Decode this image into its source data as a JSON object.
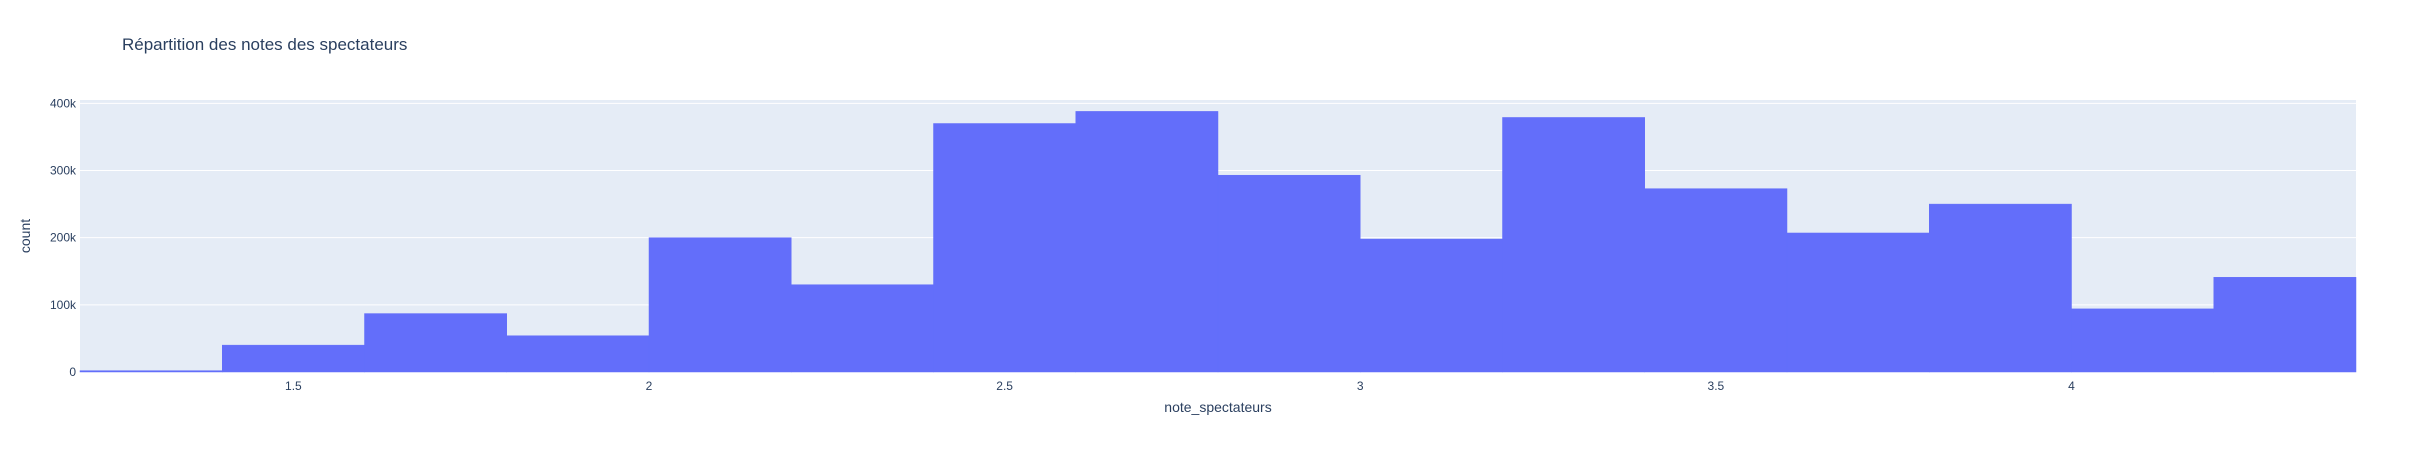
{
  "chart_data": {
    "type": "bar",
    "title": "Répartition des notes des spectateurs",
    "xlabel": "note_spectateurs",
    "ylabel": "count",
    "xlim": [
      1.2,
      4.4
    ],
    "ylim": [
      0,
      405000
    ],
    "x_ticks": [
      {
        "value": 1.5,
        "label": "1.5"
      },
      {
        "value": 2,
        "label": "2"
      },
      {
        "value": 2.5,
        "label": "2.5"
      },
      {
        "value": 3,
        "label": "3"
      },
      {
        "value": 3.5,
        "label": "3.5"
      },
      {
        "value": 4,
        "label": "4"
      }
    ],
    "y_ticks": [
      {
        "value": 0,
        "label": "0"
      },
      {
        "value": 100000,
        "label": "100k"
      },
      {
        "value": 200000,
        "label": "200k"
      },
      {
        "value": 300000,
        "label": "300k"
      },
      {
        "value": 400000,
        "label": "400k"
      }
    ],
    "bins": [
      {
        "x0": 1.2,
        "x1": 1.4,
        "count": 2000
      },
      {
        "x0": 1.4,
        "x1": 1.6,
        "count": 40000
      },
      {
        "x0": 1.6,
        "x1": 1.8,
        "count": 87000
      },
      {
        "x0": 1.8,
        "x1": 2.0,
        "count": 54000
      },
      {
        "x0": 2.0,
        "x1": 2.2,
        "count": 200000
      },
      {
        "x0": 2.2,
        "x1": 2.4,
        "count": 130000
      },
      {
        "x0": 2.4,
        "x1": 2.6,
        "count": 370000
      },
      {
        "x0": 2.6,
        "x1": 2.8,
        "count": 388000
      },
      {
        "x0": 2.8,
        "x1": 3.0,
        "count": 293000
      },
      {
        "x0": 3.0,
        "x1": 3.2,
        "count": 198000
      },
      {
        "x0": 3.2,
        "x1": 3.4,
        "count": 379000
      },
      {
        "x0": 3.4,
        "x1": 3.6,
        "count": 273000
      },
      {
        "x0": 3.6,
        "x1": 3.8,
        "count": 207000
      },
      {
        "x0": 3.8,
        "x1": 4.0,
        "count": 250000
      },
      {
        "x0": 4.0,
        "x1": 4.2,
        "count": 94000
      },
      {
        "x0": 4.2,
        "x1": 4.4,
        "count": 141000
      }
    ],
    "grid": true,
    "colors": {
      "bar": "#636efa",
      "plot_bg": "#e5ecf6",
      "grid": "#ffffff",
      "text": "#2a3f5f"
    }
  }
}
